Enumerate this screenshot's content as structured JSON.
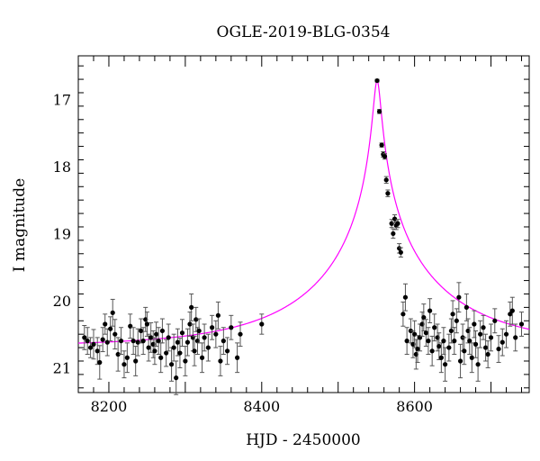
{
  "chart_data": {
    "type": "scatter",
    "title": "OGLE-2019-BLG-0354",
    "xlabel": "HJD - 2450000",
    "ylabel": "I magnitude",
    "xlim": [
      8160,
      8750
    ],
    "ylim": [
      21.37,
      16.35
    ],
    "y_inverted": true,
    "x_ticks": [
      8200,
      8400,
      8600
    ],
    "y_ticks": [
      17,
      18,
      19,
      20,
      21
    ],
    "colors": {
      "points": "#000000",
      "model": "#ff00ff",
      "errorbars": "#000000"
    },
    "model_curve": {
      "type": "line",
      "t0": 8551,
      "peak_mag": 16.72,
      "baseline_mag": 20.68,
      "u0": 0.0262,
      "tE": 176
    },
    "series": [
      {
        "type": "scatter_errorbars",
        "points": [
          {
            "x": 8168,
            "y": 20.55,
            "err": 0.18
          },
          {
            "x": 8172,
            "y": 20.6,
            "err": 0.2
          },
          {
            "x": 8176,
            "y": 20.7,
            "err": 0.15
          },
          {
            "x": 8180,
            "y": 20.65,
            "err": 0.22
          },
          {
            "x": 8185,
            "y": 20.75,
            "err": 0.2
          },
          {
            "x": 8188,
            "y": 20.92,
            "err": 0.25
          },
          {
            "x": 8192,
            "y": 20.58,
            "err": 0.18
          },
          {
            "x": 8195,
            "y": 20.35,
            "err": 0.15
          },
          {
            "x": 8198,
            "y": 20.62,
            "err": 0.2
          },
          {
            "x": 8202,
            "y": 20.42,
            "err": 0.18
          },
          {
            "x": 8205,
            "y": 20.18,
            "err": 0.2
          },
          {
            "x": 8208,
            "y": 20.5,
            "err": 0.22
          },
          {
            "x": 8212,
            "y": 20.8,
            "err": 0.25
          },
          {
            "x": 8216,
            "y": 20.6,
            "err": 0.2
          },
          {
            "x": 8220,
            "y": 20.95,
            "err": 0.2
          },
          {
            "x": 8224,
            "y": 20.85,
            "err": 0.22
          },
          {
            "x": 8228,
            "y": 20.38,
            "err": 0.18
          },
          {
            "x": 8232,
            "y": 20.6,
            "err": 0.2
          },
          {
            "x": 8235,
            "y": 20.9,
            "err": 0.22
          },
          {
            "x": 8238,
            "y": 20.62,
            "err": 0.2
          },
          {
            "x": 8242,
            "y": 20.45,
            "err": 0.18
          },
          {
            "x": 8245,
            "y": 20.6,
            "err": 0.2
          },
          {
            "x": 8248,
            "y": 20.28,
            "err": 0.18
          },
          {
            "x": 8250,
            "y": 20.35,
            "err": 0.18
          },
          {
            "x": 8252,
            "y": 20.7,
            "err": 0.2
          },
          {
            "x": 8255,
            "y": 20.55,
            "err": 0.22
          },
          {
            "x": 8258,
            "y": 20.65,
            "err": 0.2
          },
          {
            "x": 8260,
            "y": 20.75,
            "err": 0.2
          },
          {
            "x": 8262,
            "y": 20.5,
            "err": 0.18
          },
          {
            "x": 8265,
            "y": 20.6,
            "err": 0.2
          },
          {
            "x": 8268,
            "y": 20.85,
            "err": 0.22
          },
          {
            "x": 8270,
            "y": 20.45,
            "err": 0.18
          },
          {
            "x": 8275,
            "y": 20.78,
            "err": 0.2
          },
          {
            "x": 8278,
            "y": 20.55,
            "err": 0.2
          },
          {
            "x": 8282,
            "y": 20.95,
            "err": 0.25
          },
          {
            "x": 8285,
            "y": 20.7,
            "err": 0.2
          },
          {
            "x": 8288,
            "y": 21.15,
            "err": 0.25
          },
          {
            "x": 8290,
            "y": 20.62,
            "err": 0.2
          },
          {
            "x": 8293,
            "y": 20.78,
            "err": 0.22
          },
          {
            "x": 8296,
            "y": 20.48,
            "err": 0.2
          },
          {
            "x": 8300,
            "y": 20.9,
            "err": 0.22
          },
          {
            "x": 8303,
            "y": 20.62,
            "err": 0.2
          },
          {
            "x": 8306,
            "y": 20.35,
            "err": 0.18
          },
          {
            "x": 8308,
            "y": 20.1,
            "err": 0.2
          },
          {
            "x": 8310,
            "y": 20.55,
            "err": 0.2
          },
          {
            "x": 8312,
            "y": 20.75,
            "err": 0.22
          },
          {
            "x": 8314,
            "y": 20.28,
            "err": 0.18
          },
          {
            "x": 8316,
            "y": 20.6,
            "err": 0.2
          },
          {
            "x": 8318,
            "y": 20.45,
            "err": 0.18
          },
          {
            "x": 8322,
            "y": 20.85,
            "err": 0.22
          },
          {
            "x": 8325,
            "y": 20.55,
            "err": 0.2
          },
          {
            "x": 8330,
            "y": 20.7,
            "err": 0.2
          },
          {
            "x": 8335,
            "y": 20.4,
            "err": 0.18
          },
          {
            "x": 8340,
            "y": 20.5,
            "err": 0.2
          },
          {
            "x": 8343,
            "y": 20.22,
            "err": 0.2
          },
          {
            "x": 8346,
            "y": 20.9,
            "err": 0.22
          },
          {
            "x": 8350,
            "y": 20.6,
            "err": 0.2
          },
          {
            "x": 8355,
            "y": 20.75,
            "err": 0.2
          },
          {
            "x": 8360,
            "y": 20.4,
            "err": 0.18
          },
          {
            "x": 8368,
            "y": 20.85,
            "err": 0.22
          },
          {
            "x": 8372,
            "y": 20.5,
            "err": 0.18
          },
          {
            "x": 8400,
            "y": 20.35,
            "err": 0.15
          },
          {
            "x": 8551,
            "y": 16.72,
            "err": 0.02
          },
          {
            "x": 8554,
            "y": 17.18,
            "err": 0.03
          },
          {
            "x": 8557,
            "y": 17.68,
            "err": 0.03
          },
          {
            "x": 8559,
            "y": 17.82,
            "err": 0.04
          },
          {
            "x": 8561,
            "y": 17.85,
            "err": 0.04
          },
          {
            "x": 8563,
            "y": 18.2,
            "err": 0.05
          },
          {
            "x": 8565,
            "y": 18.4,
            "err": 0.05
          },
          {
            "x": 8570,
            "y": 18.85,
            "err": 0.06
          },
          {
            "x": 8572,
            "y": 19.0,
            "err": 0.07
          },
          {
            "x": 8574,
            "y": 18.78,
            "err": 0.06
          },
          {
            "x": 8576,
            "y": 18.88,
            "err": 0.06
          },
          {
            "x": 8578,
            "y": 18.85,
            "err": 0.06
          },
          {
            "x": 8580,
            "y": 19.22,
            "err": 0.07
          },
          {
            "x": 8582,
            "y": 19.28,
            "err": 0.07
          },
          {
            "x": 8585,
            "y": 20.2,
            "err": 0.18
          },
          {
            "x": 8588,
            "y": 19.95,
            "err": 0.2
          },
          {
            "x": 8590,
            "y": 20.6,
            "err": 0.2
          },
          {
            "x": 8595,
            "y": 20.45,
            "err": 0.18
          },
          {
            "x": 8598,
            "y": 20.65,
            "err": 0.2
          },
          {
            "x": 8600,
            "y": 20.5,
            "err": 0.2
          },
          {
            "x": 8602,
            "y": 20.8,
            "err": 0.22
          },
          {
            "x": 8604,
            "y": 20.72,
            "err": 0.2
          },
          {
            "x": 8607,
            "y": 20.55,
            "err": 0.2
          },
          {
            "x": 8610,
            "y": 20.35,
            "err": 0.18
          },
          {
            "x": 8612,
            "y": 20.25,
            "err": 0.2
          },
          {
            "x": 8615,
            "y": 20.48,
            "err": 0.2
          },
          {
            "x": 8618,
            "y": 20.6,
            "err": 0.2
          },
          {
            "x": 8620,
            "y": 20.15,
            "err": 0.18
          },
          {
            "x": 8623,
            "y": 20.75,
            "err": 0.22
          },
          {
            "x": 8626,
            "y": 20.4,
            "err": 0.2
          },
          {
            "x": 8630,
            "y": 20.55,
            "err": 0.2
          },
          {
            "x": 8632,
            "y": 20.68,
            "err": 0.2
          },
          {
            "x": 8635,
            "y": 20.85,
            "err": 0.22
          },
          {
            "x": 8638,
            "y": 20.6,
            "err": 0.2
          },
          {
            "x": 8640,
            "y": 20.95,
            "err": 0.25
          },
          {
            "x": 8645,
            "y": 20.7,
            "err": 0.2
          },
          {
            "x": 8648,
            "y": 20.45,
            "err": 0.18
          },
          {
            "x": 8650,
            "y": 20.2,
            "err": 0.2
          },
          {
            "x": 8652,
            "y": 20.6,
            "err": 0.2
          },
          {
            "x": 8655,
            "y": 20.3,
            "err": 0.18
          },
          {
            "x": 8658,
            "y": 19.95,
            "err": 0.22
          },
          {
            "x": 8660,
            "y": 20.9,
            "err": 0.25
          },
          {
            "x": 8663,
            "y": 20.55,
            "err": 0.2
          },
          {
            "x": 8665,
            "y": 20.75,
            "err": 0.2
          },
          {
            "x": 8668,
            "y": 20.1,
            "err": 0.2
          },
          {
            "x": 8670,
            "y": 20.45,
            "err": 0.18
          },
          {
            "x": 8672,
            "y": 20.6,
            "err": 0.2
          },
          {
            "x": 8675,
            "y": 20.85,
            "err": 0.22
          },
          {
            "x": 8678,
            "y": 20.35,
            "err": 0.2
          },
          {
            "x": 8680,
            "y": 20.65,
            "err": 0.2
          },
          {
            "x": 8683,
            "y": 20.95,
            "err": 0.25
          },
          {
            "x": 8686,
            "y": 20.5,
            "err": 0.2
          },
          {
            "x": 8690,
            "y": 20.4,
            "err": 0.18
          },
          {
            "x": 8693,
            "y": 20.7,
            "err": 0.2
          },
          {
            "x": 8696,
            "y": 20.8,
            "err": 0.2
          },
          {
            "x": 8700,
            "y": 20.55,
            "err": 0.2
          },
          {
            "x": 8705,
            "y": 20.3,
            "err": 0.18
          },
          {
            "x": 8710,
            "y": 20.72,
            "err": 0.2
          },
          {
            "x": 8715,
            "y": 20.62,
            "err": 0.2
          },
          {
            "x": 8720,
            "y": 20.5,
            "err": 0.2
          },
          {
            "x": 8725,
            "y": 20.2,
            "err": 0.18
          },
          {
            "x": 8728,
            "y": 20.15,
            "err": 0.2
          },
          {
            "x": 8732,
            "y": 20.55,
            "err": 0.2
          },
          {
            "x": 8740,
            "y": 20.35,
            "err": 0.18
          }
        ]
      }
    ]
  }
}
